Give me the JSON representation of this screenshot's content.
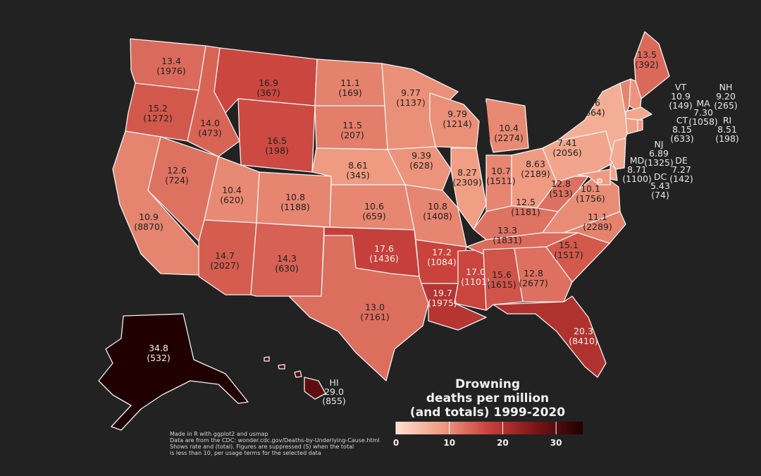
{
  "title_lines": [
    "Drowning",
    "deaths per million",
    "(and totals) 1999-2020"
  ],
  "notes": [
    "Made in R with ggplot2 and usmap",
    "Data are from the CDC: wonder.cdc.gov/Deaths-by-Underlying-Cause.html",
    "Shows rate and (total). Figures are suppressed (S) when the total",
    " is less than 10, per usage terms for the selected data"
  ],
  "legend": {
    "ticks": [
      "0",
      "10",
      "20",
      "30"
    ],
    "min": 0,
    "max": 35,
    "low_color": "#fde0cf",
    "high_color": "#1f0000"
  },
  "states": {
    "WA": {
      "rate": "13.4",
      "total": "(1976)"
    },
    "OR": {
      "rate": "15.2",
      "total": "(1272)"
    },
    "CA": {
      "rate": "10.9",
      "total": "(8870)"
    },
    "ID": {
      "rate": "14.0",
      "total": "(473)"
    },
    "NV": {
      "rate": "12.6",
      "total": "(724)"
    },
    "MT": {
      "rate": "16.9",
      "total": "(367)"
    },
    "WY": {
      "rate": "16.5",
      "total": "(198)"
    },
    "UT": {
      "rate": "10.4",
      "total": "(620)"
    },
    "AZ": {
      "rate": "14.7",
      "total": "(2027)"
    },
    "CO": {
      "rate": "10.8",
      "total": "(1188)"
    },
    "NM": {
      "rate": "14.3",
      "total": "(630)"
    },
    "ND": {
      "rate": "11.1",
      "total": "(169)"
    },
    "SD": {
      "rate": "11.5",
      "total": "(207)"
    },
    "NE": {
      "rate": "8.61",
      "total": "(345)"
    },
    "KS": {
      "rate": "10.6",
      "total": "(659)"
    },
    "OK": {
      "rate": "17.6",
      "total": "(1436)"
    },
    "TX": {
      "rate": "13.0",
      "total": "(7161)"
    },
    "MN": {
      "rate": "9.77",
      "total": "(1137)"
    },
    "IA": {
      "rate": "9.39",
      "total": "(628)"
    },
    "MO": {
      "rate": "10.8",
      "total": "(1408)"
    },
    "AR": {
      "rate": "17.2",
      "total": "(1084)"
    },
    "LA": {
      "rate": "19.7",
      "total": "(1975)"
    },
    "WI": {
      "rate": "9.79",
      "total": "(1214)"
    },
    "IL": {
      "rate": "8.27",
      "total": "(2309)"
    },
    "MS": {
      "rate": "17.0",
      "total": "(1101)"
    },
    "MI": {
      "rate": "10.4",
      "total": "(2274)"
    },
    "IN": {
      "rate": "10.7",
      "total": "(1511)"
    },
    "OH": {
      "rate": "8.63",
      "total": "(2189)"
    },
    "KY": {
      "rate": "12.5",
      "total": "(1181)"
    },
    "TN": {
      "rate": "13.3",
      "total": "(1831)"
    },
    "AL": {
      "rate": "15.6",
      "total": "(1615)"
    },
    "GA": {
      "rate": "12.8",
      "total": "(2677)"
    },
    "FL": {
      "rate": "20.3",
      "total": "(8410)"
    },
    "SC": {
      "rate": "15.1",
      "total": "(1517)"
    },
    "NC": {
      "rate": "11.1",
      "total": "(2289)"
    },
    "VA": {
      "rate": "10.1",
      "total": "(1756)"
    },
    "WV": {
      "rate": "12.8",
      "total": "(513)"
    },
    "PA": {
      "rate": "7.41",
      "total": "(2056)"
    },
    "NY": {
      "rate": "6.26",
      "total": "(2664)"
    },
    "ME": {
      "rate": "13.5",
      "total": "(392)"
    },
    "AK": {
      "rate": "34.8",
      "total": "(532)"
    },
    "HI": {
      "abbr": "HI",
      "rate": "29.0",
      "total": "(855)"
    },
    "VT": {
      "abbr": "VT",
      "rate": "10.9",
      "total": "(149)"
    },
    "NH": {
      "abbr": "NH",
      "rate": "9.20",
      "total": "(265)"
    },
    "MA": {
      "abbr": "MA",
      "rate": "7.30",
      "total": "(1058)"
    },
    "CT": {
      "abbr": "CT",
      "rate": "8.15",
      "total": "(633)"
    },
    "RI": {
      "abbr": "RI",
      "rate": "8.51",
      "total": "(198)"
    },
    "NJ": {
      "abbr": "NJ",
      "rate": "6.89",
      "total": "(1325)"
    },
    "MD": {
      "abbr": "MD",
      "rate": "8.71",
      "total": "(1100)"
    },
    "DE": {
      "abbr": "DE",
      "rate": "7.27",
      "total": "(142)"
    },
    "DC": {
      "abbr": "DC",
      "rate": "5.43",
      "total": "(74)"
    }
  }
}
